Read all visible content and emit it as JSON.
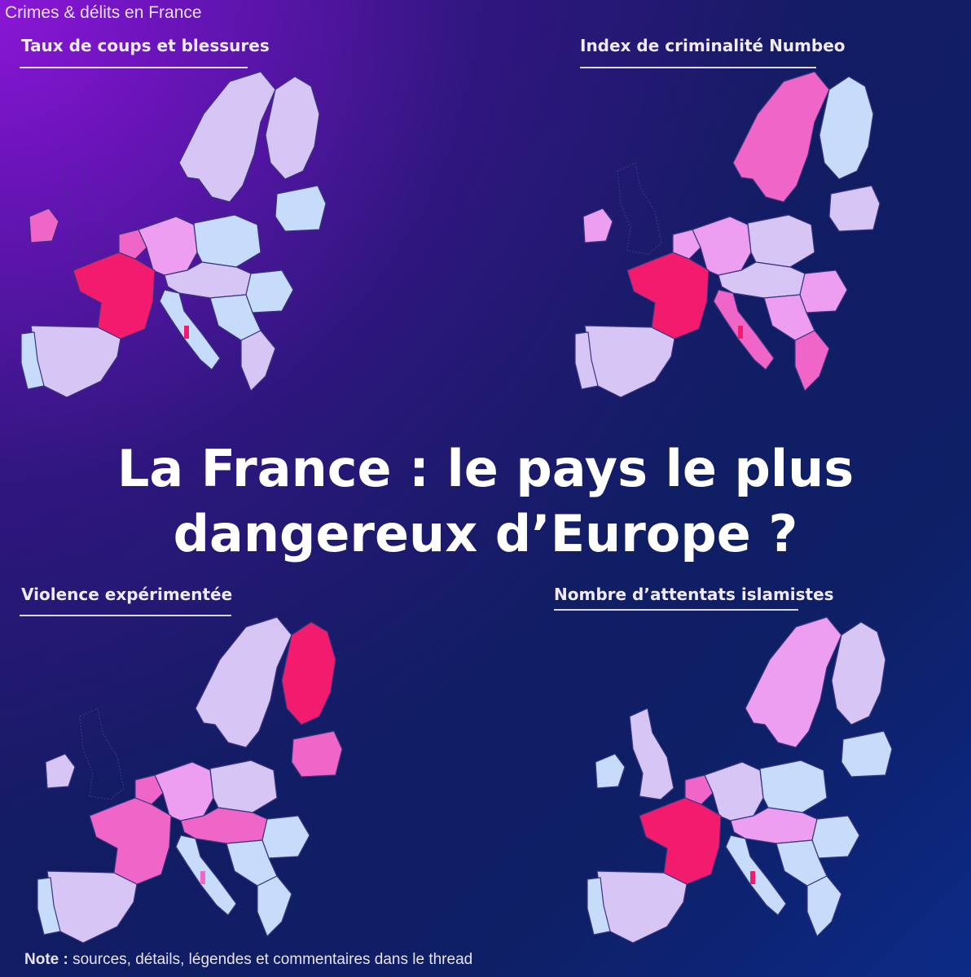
{
  "header": {
    "label": "Crimes & délits en France"
  },
  "headline": {
    "line1": "La France : le pays le plus",
    "line2": "dangereux d’Europe ?"
  },
  "panels": [
    {
      "title": "Taux de coups et blessures"
    },
    {
      "title": "Index de criminalité Numbeo"
    },
    {
      "title": "Violence expérimentée"
    },
    {
      "title": "Nombre d’attentats islamistes"
    }
  ],
  "palette": {
    "level1": "#c7dcfb",
    "level2": "#d6c5f5",
    "level3": "#ee9ef0",
    "level4": "#f065c8",
    "level5": "#f21b6d",
    "ocean_outline": "#3a3580",
    "uk_ireland_outline_only": "#4b4a9a"
  },
  "maps": [
    {
      "panel": "Taux de coups et blessures",
      "highlight": "France",
      "fills": {
        "france": "level5",
        "spain": "level2",
        "portugal": "level1",
        "italy": "level1",
        "germany": "level3",
        "benelux": "level4",
        "poland": "level1",
        "nordic_west": "level2",
        "nordic_east": "level2",
        "baltics": "level1",
        "central": "level2",
        "balkans": "level1",
        "romania": "level1",
        "greece": "level2",
        "ireland": "level4",
        "uk": "outline"
      }
    },
    {
      "panel": "Index de criminalité Numbeo",
      "highlight": "France",
      "fills": {
        "france": "level5",
        "spain": "level2",
        "portugal": "level2",
        "italy": "level4",
        "germany": "level3",
        "benelux": "level3",
        "poland": "level2",
        "nordic_west": "level4",
        "nordic_east": "level1",
        "baltics": "level2",
        "central": "level2",
        "balkans": "level3",
        "romania": "level3",
        "greece": "level4",
        "ireland": "level3",
        "uk": "outline"
      }
    },
    {
      "panel": "Violence expérimentée",
      "highlight": "Finland",
      "fills": {
        "france": "level4",
        "spain": "level2",
        "portugal": "level1",
        "italy": "level1",
        "germany": "level3",
        "benelux": "level4",
        "poland": "level2",
        "nordic_west": "level2",
        "nordic_east": "level5",
        "baltics": "level4",
        "central": "level4",
        "balkans": "level1",
        "romania": "level1",
        "greece": "level1",
        "ireland": "level2",
        "uk": "outline"
      }
    },
    {
      "panel": "Nombre d’attentats islamistes",
      "highlight": "France",
      "fills": {
        "france": "level5",
        "spain": "level2",
        "portugal": "level1",
        "italy": "level1",
        "germany": "level2",
        "benelux": "level4",
        "poland": "level1",
        "nordic_west": "level3",
        "nordic_east": "level2",
        "baltics": "level1",
        "central": "level3",
        "balkans": "level1",
        "romania": "level1",
        "greece": "level1",
        "ireland": "level1",
        "uk": "level2"
      }
    }
  ],
  "note": {
    "label": "Note :",
    "text": " sources, détails, légendes et commentaires dans le thread"
  }
}
